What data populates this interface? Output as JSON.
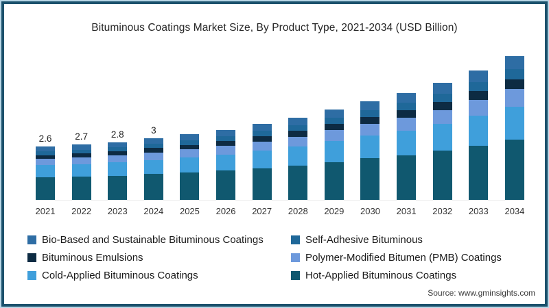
{
  "title": "Bituminous Coatings Market Size, By Product Type, 2021-2034 (USD Billion)",
  "source": "Source: www.gminsights.com",
  "frame": {
    "outer_color": "#b9d7e7",
    "border_color": "#1b516c",
    "background": "#ffffff"
  },
  "chart_data": {
    "type": "bar",
    "stacked": true,
    "title": "Bituminous Coatings Market Size, By Product Type, 2021-2034 (USD Billion)",
    "xlabel": "",
    "ylabel": "USD Billion",
    "ylim": [
      0,
      7.5
    ],
    "grid": false,
    "legend_position": "bottom",
    "categories": [
      "2021",
      "2022",
      "2023",
      "2024",
      "2025",
      "2026",
      "2027",
      "2028",
      "2029",
      "2030",
      "2031",
      "2032",
      "2033",
      "2034"
    ],
    "bar_labels": [
      "2.6",
      "2.7",
      "2.8",
      "3",
      "",
      "",
      "",
      "",
      "",
      "",
      "",
      "",
      "",
      ""
    ],
    "totals": [
      2.6,
      2.7,
      2.8,
      3.0,
      3.2,
      3.4,
      3.7,
      4.0,
      4.4,
      4.8,
      5.2,
      5.7,
      6.3,
      7.0
    ],
    "series": [
      {
        "name": "Hot-Applied Bituminous Coatings",
        "color": "#10586F",
        "values": [
          1.09,
          1.13,
          1.18,
          1.26,
          1.34,
          1.43,
          1.55,
          1.68,
          1.85,
          2.02,
          2.18,
          2.39,
          2.65,
          2.94
        ]
      },
      {
        "name": "Cold-Applied Bituminous Coatings",
        "color": "#3F9FDB",
        "values": [
          0.6,
          0.62,
          0.64,
          0.69,
          0.74,
          0.78,
          0.85,
          0.92,
          1.01,
          1.1,
          1.2,
          1.31,
          1.45,
          1.61
        ]
      },
      {
        "name": "Polymer-Modified Bitumen (PMB) Coatings",
        "color": "#6D99DC",
        "values": [
          0.31,
          0.32,
          0.34,
          0.36,
          0.38,
          0.41,
          0.44,
          0.48,
          0.53,
          0.58,
          0.62,
          0.68,
          0.76,
          0.84
        ]
      },
      {
        "name": "Bituminous Emulsions",
        "color": "#0D2B43",
        "values": [
          0.18,
          0.19,
          0.2,
          0.21,
          0.22,
          0.24,
          0.26,
          0.28,
          0.31,
          0.34,
          0.36,
          0.4,
          0.44,
          0.49
        ]
      },
      {
        "name": "Self-Adhesive Bituminous",
        "color": "#1F6899",
        "values": [
          0.18,
          0.19,
          0.2,
          0.21,
          0.22,
          0.24,
          0.26,
          0.28,
          0.31,
          0.34,
          0.36,
          0.4,
          0.44,
          0.49
        ]
      },
      {
        "name": "Bio-Based and Sustainable Bituminous Coatings",
        "color": "#2E6DA4",
        "values": [
          0.23,
          0.24,
          0.25,
          0.27,
          0.29,
          0.31,
          0.33,
          0.36,
          0.4,
          0.43,
          0.47,
          0.51,
          0.57,
          0.63
        ]
      }
    ]
  },
  "legend": {
    "items": [
      {
        "label": "Bio-Based and Sustainable Bituminous Coatings",
        "color": "#2E6DA4"
      },
      {
        "label": "Self-Adhesive Bituminous",
        "color": "#1F6899"
      },
      {
        "label": "Bituminous Emulsions",
        "color": "#0D2B43"
      },
      {
        "label": "Polymer-Modified Bitumen (PMB) Coatings",
        "color": "#6D99DC"
      },
      {
        "label": "Cold-Applied Bituminous Coatings",
        "color": "#3F9FDB"
      },
      {
        "label": "Hot-Applied Bituminous Coatings",
        "color": "#10586F"
      }
    ]
  }
}
